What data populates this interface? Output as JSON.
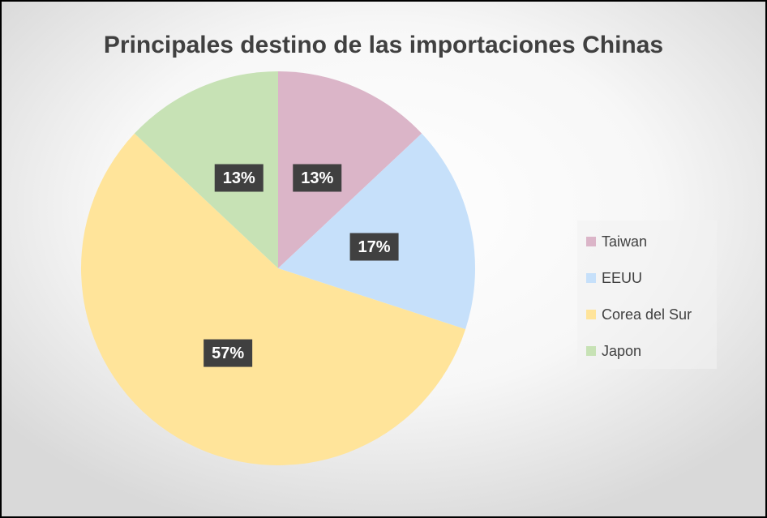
{
  "chart_data": {
    "type": "pie",
    "title": "Principales destino de las importaciones Chinas",
    "categories": [
      "Taiwan",
      "EEUU",
      "Corea del Sur",
      "Japon"
    ],
    "values": [
      13,
      17,
      57,
      13
    ],
    "value_labels": [
      "13%",
      "17%",
      "57%",
      "13%"
    ],
    "colors": [
      "#dbb5c8",
      "#c6e0fa",
      "#ffe49a",
      "#c7e2b5"
    ],
    "legend": "right"
  }
}
